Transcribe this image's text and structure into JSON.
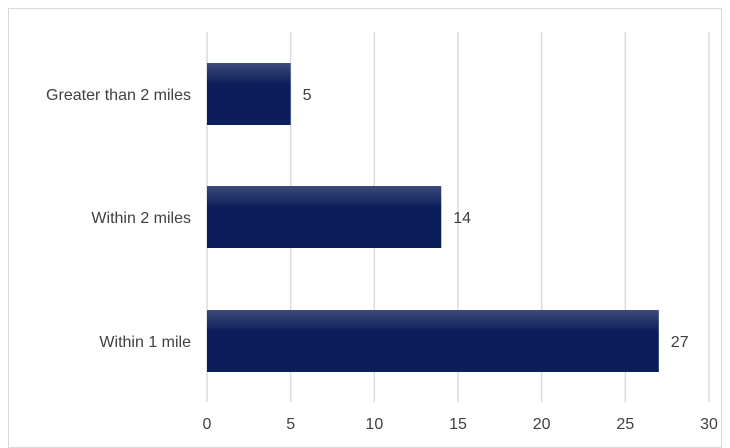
{
  "chart_data": {
    "type": "bar",
    "orientation": "horizontal",
    "categories": [
      "Greater than 2 miles",
      "Within 2 miles",
      "Within 1 mile"
    ],
    "values": [
      5,
      14,
      27
    ],
    "xlim": [
      0,
      30
    ],
    "xticks": [
      0,
      5,
      10,
      15,
      20,
      25,
      30
    ],
    "grid": true,
    "legend": "none",
    "bar_color_top": "#3d4a7a",
    "bar_color": "#0b1e5a",
    "grid_color": "#d9dae4",
    "text_color": "#404040"
  }
}
